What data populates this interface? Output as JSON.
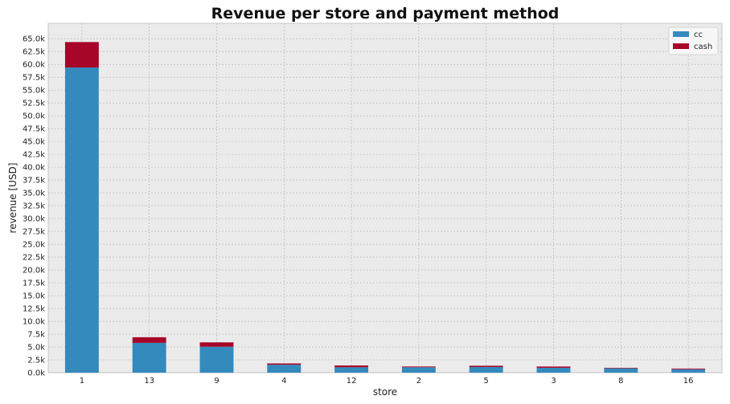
{
  "chart_data": {
    "type": "bar",
    "stacked": true,
    "title": "Revenue per store and payment method",
    "xlabel": "store",
    "ylabel": "revenue [USD]",
    "categories": [
      "1",
      "13",
      "9",
      "4",
      "12",
      "2",
      "5",
      "3",
      "8",
      "16"
    ],
    "series": [
      {
        "name": "cc",
        "color": "#348abd",
        "values": [
          59400,
          5800,
          5050,
          1550,
          1050,
          1050,
          1100,
          950,
          850,
          650
        ]
      },
      {
        "name": "cash",
        "color": "#a60628",
        "values": [
          4950,
          1100,
          850,
          250,
          350,
          150,
          250,
          250,
          100,
          150
        ]
      }
    ],
    "ylim": [
      0,
      68000
    ],
    "ytick_step": 2500,
    "ytick_labels": [
      "0.0k",
      "2.5k",
      "5.0k",
      "7.5k",
      "10.0k",
      "12.5k",
      "15.0k",
      "17.5k",
      "20.0k",
      "22.5k",
      "25.0k",
      "27.5k",
      "30.0k",
      "32.5k",
      "35.0k",
      "37.5k",
      "40.0k",
      "42.5k",
      "45.0k",
      "47.5k",
      "50.0k",
      "52.5k",
      "55.0k",
      "57.5k",
      "60.0k",
      "62.5k",
      "65.0k"
    ],
    "grid": true,
    "legend_position": "top-right",
    "background_color": "#ebebeb"
  }
}
